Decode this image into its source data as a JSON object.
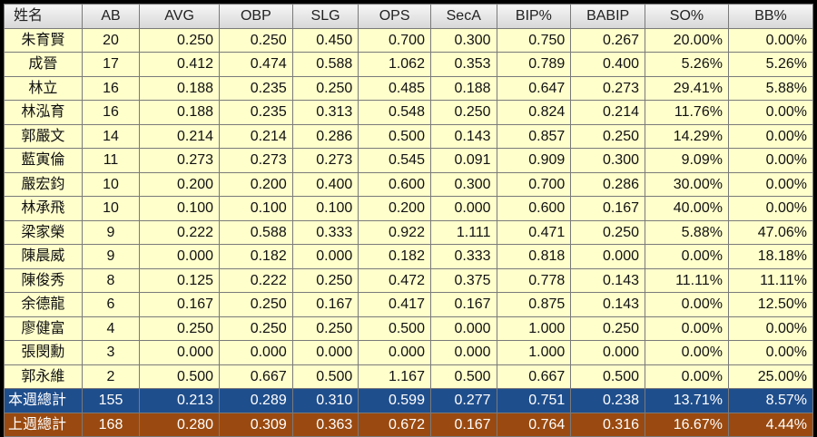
{
  "table": {
    "headers": [
      "姓名",
      "AB",
      "AVG",
      "OBP",
      "SLG",
      "OPS",
      "SecA",
      "BIP%",
      "BABIP",
      "SO%",
      "BB%"
    ],
    "rows": [
      [
        "朱育賢",
        "20",
        "0.250",
        "0.250",
        "0.450",
        "0.700",
        "0.300",
        "0.750",
        "0.267",
        "20.00%",
        "0.00%"
      ],
      [
        "成晉",
        "17",
        "0.412",
        "0.474",
        "0.588",
        "1.062",
        "0.353",
        "0.789",
        "0.400",
        "5.26%",
        "5.26%"
      ],
      [
        "林立",
        "16",
        "0.188",
        "0.235",
        "0.250",
        "0.485",
        "0.188",
        "0.647",
        "0.273",
        "29.41%",
        "5.88%"
      ],
      [
        "林泓育",
        "16",
        "0.188",
        "0.235",
        "0.313",
        "0.548",
        "0.250",
        "0.824",
        "0.214",
        "11.76%",
        "0.00%"
      ],
      [
        "郭嚴文",
        "14",
        "0.214",
        "0.214",
        "0.286",
        "0.500",
        "0.143",
        "0.857",
        "0.250",
        "14.29%",
        "0.00%"
      ],
      [
        "藍寅倫",
        "11",
        "0.273",
        "0.273",
        "0.273",
        "0.545",
        "0.091",
        "0.909",
        "0.300",
        "9.09%",
        "0.00%"
      ],
      [
        "嚴宏鈞",
        "10",
        "0.200",
        "0.200",
        "0.400",
        "0.600",
        "0.300",
        "0.700",
        "0.286",
        "30.00%",
        "0.00%"
      ],
      [
        "林承飛",
        "10",
        "0.100",
        "0.100",
        "0.100",
        "0.200",
        "0.000",
        "0.600",
        "0.167",
        "40.00%",
        "0.00%"
      ],
      [
        "梁家榮",
        "9",
        "0.222",
        "0.588",
        "0.333",
        "0.922",
        "1.111",
        "0.471",
        "0.250",
        "5.88%",
        "47.06%"
      ],
      [
        "陳晨威",
        "9",
        "0.000",
        "0.182",
        "0.000",
        "0.182",
        "0.333",
        "0.818",
        "0.000",
        "0.00%",
        "18.18%"
      ],
      [
        "陳俊秀",
        "8",
        "0.125",
        "0.222",
        "0.250",
        "0.472",
        "0.375",
        "0.778",
        "0.143",
        "11.11%",
        "11.11%"
      ],
      [
        "余德龍",
        "6",
        "0.167",
        "0.250",
        "0.167",
        "0.417",
        "0.167",
        "0.875",
        "0.143",
        "0.00%",
        "12.50%"
      ],
      [
        "廖健富",
        "4",
        "0.250",
        "0.250",
        "0.250",
        "0.500",
        "0.000",
        "1.000",
        "0.250",
        "0.00%",
        "0.00%"
      ],
      [
        "張閔勳",
        "3",
        "0.000",
        "0.000",
        "0.000",
        "0.000",
        "0.000",
        "1.000",
        "0.000",
        "0.00%",
        "0.00%"
      ],
      [
        "郭永維",
        "2",
        "0.500",
        "0.667",
        "0.500",
        "1.167",
        "0.500",
        "0.667",
        "0.500",
        "0.00%",
        "25.00%"
      ]
    ],
    "totals": [
      [
        "本週總計",
        "155",
        "0.213",
        "0.289",
        "0.310",
        "0.599",
        "0.277",
        "0.751",
        "0.238",
        "13.71%",
        "8.57%"
      ],
      [
        "上週總計",
        "168",
        "0.280",
        "0.309",
        "0.363",
        "0.672",
        "0.167",
        "0.764",
        "0.316",
        "16.67%",
        "4.44%"
      ]
    ]
  },
  "colors": {
    "player_row": "#ffffcc",
    "this_week_total": "#1f4e8c",
    "last_week_total": "#9a4a10",
    "header": "#e6e6e6",
    "background": "#000000"
  }
}
